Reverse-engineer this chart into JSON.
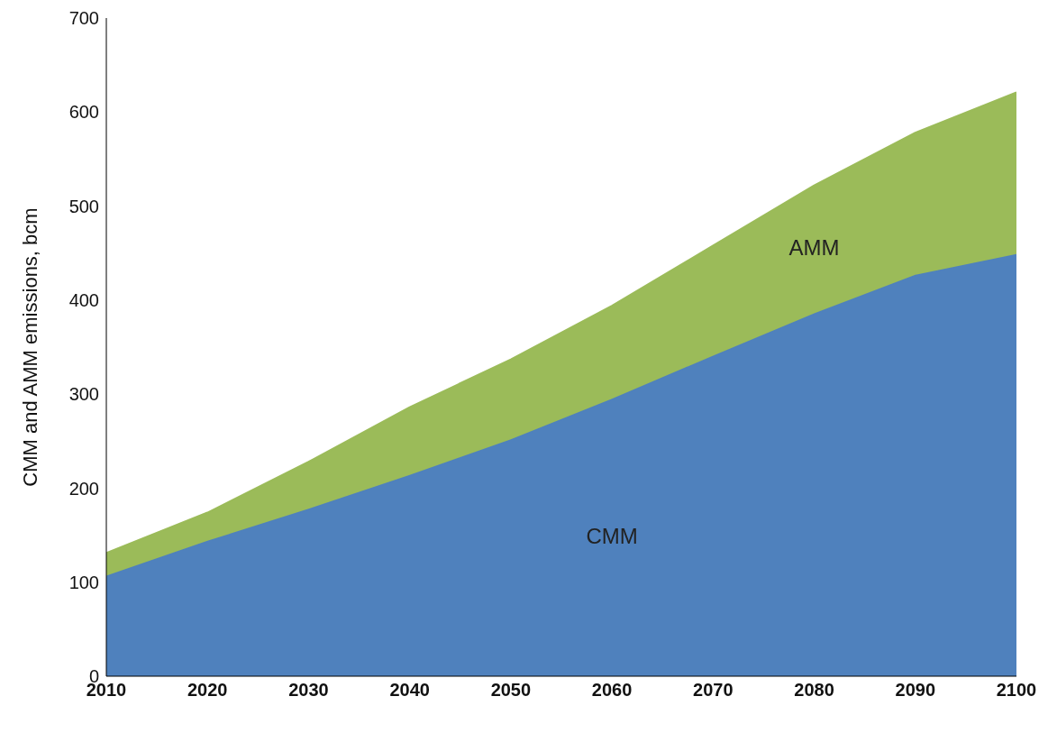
{
  "chart_data": {
    "type": "area",
    "stacked": true,
    "ylabel": "CMM and AMM  emissions, bcm",
    "x": [
      2010,
      2020,
      2030,
      2040,
      2050,
      2060,
      2070,
      2080,
      2090,
      2100
    ],
    "series": [
      {
        "name": "CMM",
        "color": "#4f81bd",
        "values": [
          107,
          144,
          178,
          214,
          252,
          295,
          341,
          386,
          427,
          449
        ]
      },
      {
        "name": "AMM",
        "color": "#9bbb59",
        "values": [
          24,
          30,
          50,
          72,
          85,
          99,
          117,
          136,
          151,
          172
        ]
      }
    ],
    "xlim": [
      2010,
      2100
    ],
    "xticks": [
      2010,
      2020,
      2030,
      2040,
      2050,
      2060,
      2070,
      2080,
      2090,
      2100
    ],
    "ylim": [
      0,
      700
    ],
    "yticks": [
      0,
      100,
      200,
      300,
      400,
      500,
      600,
      700
    ],
    "grid": false,
    "legend": false
  }
}
